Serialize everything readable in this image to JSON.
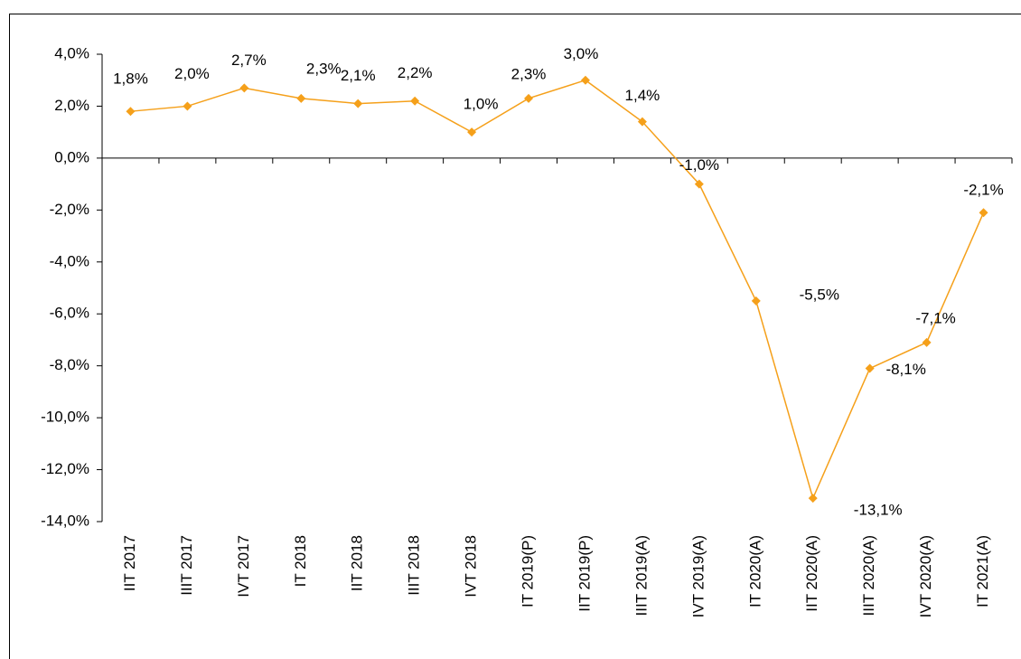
{
  "chart_data": {
    "type": "line",
    "categories": [
      "IIT 2017",
      "IIIT 2017",
      "IVT 2017",
      "IT 2018",
      "IIT 2018",
      "IIIT 2018",
      "IVT 2018",
      "IT 2019(P)",
      "IIT 2019(P)",
      "IIIT 2019(A)",
      "IVT 2019(A)",
      "IT 2020(A)",
      "IIT 2020(A)",
      "IIIT 2020(A)",
      "IVT 2020(A)",
      "IT 2021(A)"
    ],
    "series": [
      {
        "color": "#f5a01a",
        "values": [
          1.8,
          2.0,
          2.7,
          2.3,
          2.1,
          2.2,
          1.0,
          2.3,
          3.0,
          1.4,
          -1.0,
          -5.5,
          -13.1,
          -8.1,
          -7.1,
          -2.1
        ],
        "value_labels": [
          "1,8%",
          "2,0%",
          "2,7%",
          "2,3%",
          "2,1%",
          "2,2%",
          "1,0%",
          "2,3%",
          "3,0%",
          "1,4%",
          "-1,0%",
          "-5,5%",
          "-13,1%",
          "-8,1%",
          "-7,1%",
          "-2,1%"
        ]
      }
    ],
    "ylim": [
      -14,
      4
    ],
    "yticks": [
      {
        "value": 4,
        "label": "4,0%"
      },
      {
        "value": 2,
        "label": "2,0%"
      },
      {
        "value": 0,
        "label": "0,0%"
      },
      {
        "value": -2,
        "label": "-2,0%"
      },
      {
        "value": -4,
        "label": "-4,0%"
      },
      {
        "value": -6,
        "label": "-6,0%"
      },
      {
        "value": -8,
        "label": "-8,0%"
      },
      {
        "value": -10,
        "label": "-10,0%"
      },
      {
        "value": -12,
        "label": "-12,0%"
      },
      {
        "value": -14,
        "label": "-14,0%"
      }
    ]
  }
}
